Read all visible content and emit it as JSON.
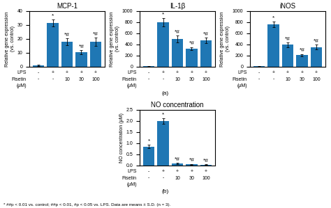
{
  "chart_data": [
    {
      "type": "bar",
      "title": "MCP-1",
      "y_label": "Relative gene expression\n(vs. control)",
      "categories": [
        null,
        null,
        null,
        null,
        null
      ],
      "tick_labels": "y",
      "values": [
        1.0,
        31.5,
        18.0,
        10.5,
        18.0
      ],
      "errors": [
        0.3,
        2.5,
        2.5,
        1.5,
        3.0
      ],
      "ylim": [
        0,
        40
      ],
      "yticks": [
        0,
        10,
        20,
        30,
        40
      ],
      "value_annotations": [
        null,
        "*",
        "*#",
        "*#",
        "*#"
      ],
      "x_rows": [
        {
          "label": "LPS",
          "values": [
            "-",
            "+",
            "+",
            "+",
            "+"
          ]
        },
        {
          "label": "Fisetin",
          "values": [
            "-",
            "-",
            "10",
            "30",
            "100"
          ]
        }
      ],
      "x_unit_label": "(μM)"
    },
    {
      "type": "bar",
      "title": "IL-1β",
      "y_label": "Relative gene expression\n(vs. control)",
      "categories": [
        null,
        null,
        null,
        null,
        null
      ],
      "tick_labels": "y",
      "values": [
        10,
        800,
        500,
        325,
        470
      ],
      "errors": [
        5,
        80,
        60,
        30,
        50
      ],
      "ylim": [
        0,
        1000
      ],
      "yticks": [
        0,
        200,
        400,
        600,
        800,
        1000
      ],
      "value_annotations": [
        null,
        "*",
        "*#",
        "*#",
        "*#"
      ],
      "x_rows": [
        {
          "label": "LPS",
          "values": [
            "-",
            "+",
            "+",
            "+",
            "+"
          ]
        },
        {
          "label": "Fisetin",
          "values": [
            "-",
            "-",
            "10",
            "30",
            "100"
          ]
        }
      ],
      "x_unit_label": "(μM)"
    },
    {
      "type": "bar",
      "title": "iNOS",
      "y_label": "Relative gene expression\n(vs. control)",
      "categories": [
        null,
        null,
        null,
        null,
        null
      ],
      "tick_labels": "y",
      "values": [
        10,
        760,
        395,
        210,
        355
      ],
      "errors": [
        5,
        50,
        40,
        20,
        40
      ],
      "ylim": [
        0,
        1000
      ],
      "yticks": [
        0,
        200,
        400,
        600,
        800,
        1000
      ],
      "value_annotations": [
        null,
        "*",
        "*#",
        "*#",
        "*#"
      ],
      "x_rows": [
        {
          "label": "LPS",
          "values": [
            "-",
            "+",
            "+",
            "+",
            "+"
          ]
        },
        {
          "label": "Fisetin",
          "values": [
            "-",
            "-",
            "10",
            "30",
            "100"
          ]
        }
      ],
      "x_unit_label": "(μM)"
    },
    {
      "type": "bar",
      "title": "NO concentration",
      "y_label": "NO concentration (μM)",
      "categories": [
        null,
        null,
        null,
        null,
        null
      ],
      "tick_labels": "y",
      "values": [
        0.85,
        2.0,
        0.08,
        0.05,
        0.04
      ],
      "errors": [
        0.08,
        0.12,
        0.03,
        0.02,
        0.02
      ],
      "ylim": [
        0,
        2.5
      ],
      "yticks": [
        0.0,
        0.5,
        1.0,
        1.5,
        2.0,
        2.5
      ],
      "value_annotations": [
        "*",
        "*",
        "*#",
        "*#",
        "*#"
      ],
      "x_rows": [
        {
          "label": "LPS",
          "values": [
            "-",
            "+",
            "+",
            "+",
            "+"
          ]
        },
        {
          "label": "Fisetin",
          "values": [
            "-",
            "-",
            "10",
            "30",
            "100"
          ]
        }
      ],
      "x_unit_label": "(μM)"
    }
  ],
  "panel_labels": [
    "(a)",
    "(b)"
  ],
  "footnote": "* ##p < 0.01 vs. control; ##p < 0.01, #p < 0.05 vs. LPS. Data are means ± S.D. (n = 3)."
}
